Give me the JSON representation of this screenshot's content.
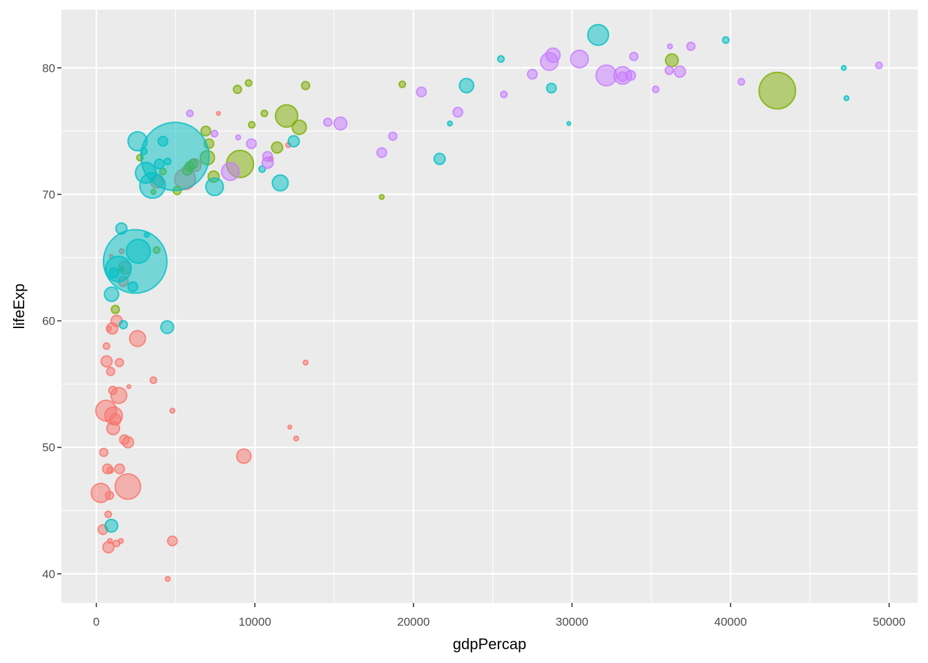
{
  "chart_data": {
    "type": "scatter",
    "title": "",
    "xlabel": "gdpPercap",
    "ylabel": "lifeExp",
    "xlim": [
      -2200,
      51800
    ],
    "ylim": [
      37.7,
      84.6
    ],
    "x_ticks": [
      0,
      10000,
      20000,
      30000,
      40000,
      50000
    ],
    "x_tick_labels": [
      "0",
      "10000",
      "20000",
      "30000",
      "40000",
      "50000"
    ],
    "y_ticks": [
      40,
      50,
      60,
      70,
      80
    ],
    "y_tick_labels": [
      "40",
      "50",
      "60",
      "70",
      "80"
    ],
    "grid": true,
    "legend": "none",
    "point_alpha": 0.5,
    "size_encoding": "population",
    "colors": {
      "Africa": "#F8766D",
      "Americas": "#7CAE00",
      "Asia": "#00BFC4",
      "Europe": "#C77CFF",
      "Oceania": "#C77CFF",
      "panel_background": "#EBEBEB"
    },
    "series": [
      {
        "color_key": "Africa",
        "points": [
          [
            277,
            46.4,
            1.2
          ],
          [
            470,
            49.6,
            0.5
          ],
          [
            415,
            43.5,
            0.6
          ],
          [
            620,
            52.9,
            1.3
          ],
          [
            640,
            58.0,
            0.4
          ],
          [
            650,
            56.8,
            0.7
          ],
          [
            700,
            48.3,
            0.6
          ],
          [
            750,
            44.7,
            0.4
          ],
          [
            760,
            42.1,
            0.7
          ],
          [
            790,
            59.4,
            0.3
          ],
          [
            830,
            46.2,
            0.5
          ],
          [
            860,
            42.6,
            0.3
          ],
          [
            880,
            48.2,
            0.4
          ],
          [
            900,
            56.0,
            0.5
          ],
          [
            930,
            65.1,
            0.2
          ],
          [
            1000,
            59.4,
            0.7
          ],
          [
            1040,
            54.5,
            0.5
          ],
          [
            1060,
            51.5,
            0.8
          ],
          [
            1090,
            52.5,
            1.1
          ],
          [
            1200,
            52.2,
            0.7
          ],
          [
            1270,
            42.4,
            0.4
          ],
          [
            1280,
            60.0,
            0.7
          ],
          [
            1420,
            54.1,
            1.0
          ],
          [
            1460,
            56.7,
            0.5
          ],
          [
            1470,
            48.3,
            0.6
          ],
          [
            1550,
            42.6,
            0.3
          ],
          [
            1600,
            65.5,
            0.3
          ],
          [
            1700,
            63.1,
            0.6
          ],
          [
            1770,
            50.6,
            0.6
          ],
          [
            1800,
            64.2,
            0.8
          ],
          [
            1990,
            46.9,
            1.6
          ],
          [
            2000,
            50.4,
            0.7
          ],
          [
            2050,
            54.8,
            0.2
          ],
          [
            2600,
            58.6,
            1.0
          ],
          [
            3600,
            55.3,
            0.4
          ],
          [
            3820,
            71.0,
            0.8
          ],
          [
            4500,
            39.6,
            0.3
          ],
          [
            4800,
            52.9,
            0.3
          ],
          [
            4800,
            42.6,
            0.6
          ],
          [
            5600,
            71.2,
            1.3
          ],
          [
            6200,
            72.3,
            0.8
          ],
          [
            7700,
            76.4,
            0.2
          ],
          [
            9300,
            49.3,
            0.9
          ],
          [
            11000,
            72.8,
            0.3
          ],
          [
            12100,
            73.9,
            0.3
          ],
          [
            12200,
            51.6,
            0.2
          ],
          [
            12600,
            50.7,
            0.3
          ],
          [
            13200,
            56.7,
            0.3
          ]
        ]
      },
      {
        "color_key": "Americas",
        "points": [
          [
            1200,
            60.9,
            0.5
          ],
          [
            1600,
            64.1,
            0.3
          ],
          [
            2750,
            72.9,
            0.4
          ],
          [
            3600,
            70.2,
            0.3
          ],
          [
            3800,
            65.6,
            0.4
          ],
          [
            4200,
            71.8,
            0.4
          ],
          [
            5100,
            70.3,
            0.5
          ],
          [
            5730,
            71.9,
            0.6
          ],
          [
            5900,
            72.2,
            0.6
          ],
          [
            6100,
            72.4,
            0.6
          ],
          [
            6900,
            75.0,
            0.6
          ],
          [
            7100,
            74.0,
            0.6
          ],
          [
            7000,
            72.9,
            0.9
          ],
          [
            7400,
            71.4,
            0.7
          ],
          [
            8900,
            78.3,
            0.5
          ],
          [
            9065,
            72.4,
            1.7
          ],
          [
            9600,
            78.8,
            0.4
          ],
          [
            9800,
            75.5,
            0.4
          ],
          [
            10600,
            76.4,
            0.4
          ],
          [
            11400,
            73.7,
            0.7
          ],
          [
            12000,
            76.2,
            1.4
          ],
          [
            12800,
            75.3,
            0.9
          ],
          [
            13200,
            78.6,
            0.5
          ],
          [
            18000,
            69.8,
            0.3
          ],
          [
            19300,
            78.7,
            0.4
          ],
          [
            36300,
            80.6,
            0.8
          ],
          [
            42950,
            78.2,
            2.3
          ]
        ]
      },
      {
        "color_key": "Asia",
        "points": [
          [
            950,
            43.8,
            0.8
          ],
          [
            960,
            62.1,
            0.9
          ],
          [
            1100,
            63.8,
            0.6
          ],
          [
            1390,
            64.1,
            1.6
          ],
          [
            1580,
            67.3,
            0.7
          ],
          [
            1700,
            59.7,
            0.5
          ],
          [
            2300,
            62.7,
            0.6
          ],
          [
            2450,
            64.7,
            4.0
          ],
          [
            2600,
            74.2,
            1.2
          ],
          [
            2650,
            65.5,
            1.5
          ],
          [
            3000,
            73.4,
            0.4
          ],
          [
            3120,
            71.7,
            1.3
          ],
          [
            3180,
            66.8,
            0.3
          ],
          [
            3540,
            70.7,
            1.6
          ],
          [
            3970,
            72.4,
            0.6
          ],
          [
            4200,
            74.2,
            0.6
          ],
          [
            4470,
            59.5,
            0.8
          ],
          [
            4500,
            72.6,
            0.4
          ],
          [
            4960,
            73.0,
            4.3
          ],
          [
            7460,
            70.6,
            1.1
          ],
          [
            10460,
            72.0,
            0.4
          ],
          [
            11600,
            70.9,
            1.0
          ],
          [
            12450,
            74.2,
            0.7
          ],
          [
            21650,
            72.8,
            0.7
          ],
          [
            22300,
            75.6,
            0.3
          ],
          [
            23350,
            78.6,
            0.9
          ],
          [
            25520,
            80.7,
            0.4
          ],
          [
            28700,
            78.4,
            0.6
          ],
          [
            29800,
            75.6,
            0.2
          ],
          [
            31650,
            82.6,
            1.3
          ],
          [
            39700,
            82.2,
            0.4
          ],
          [
            47140,
            80.0,
            0.3
          ],
          [
            47310,
            77.6,
            0.3
          ]
        ]
      },
      {
        "color_key": "Europe",
        "points": [
          [
            5900,
            76.4,
            0.4
          ],
          [
            7450,
            74.8,
            0.4
          ],
          [
            8450,
            71.8,
            1.1
          ],
          [
            8950,
            74.5,
            0.3
          ],
          [
            9780,
            74.0,
            0.6
          ],
          [
            10800,
            73.0,
            0.6
          ],
          [
            10810,
            72.5,
            0.7
          ],
          [
            14600,
            75.7,
            0.5
          ],
          [
            15400,
            75.6,
            0.8
          ],
          [
            18000,
            73.3,
            0.6
          ],
          [
            18700,
            74.6,
            0.5
          ],
          [
            20500,
            78.1,
            0.6
          ],
          [
            22800,
            76.5,
            0.6
          ],
          [
            25700,
            77.9,
            0.4
          ],
          [
            27500,
            79.5,
            0.6
          ],
          [
            28570,
            80.5,
            1.1
          ],
          [
            28800,
            81.0,
            0.9
          ],
          [
            30470,
            80.7,
            1.1
          ],
          [
            32170,
            79.4,
            1.3
          ],
          [
            33200,
            79.4,
            1.1
          ],
          [
            33200,
            79.3,
            0.6
          ],
          [
            33700,
            79.4,
            0.6
          ],
          [
            33900,
            80.9,
            0.5
          ],
          [
            35280,
            78.3,
            0.4
          ],
          [
            36130,
            79.8,
            0.5
          ],
          [
            36180,
            81.7,
            0.3
          ],
          [
            36800,
            79.7,
            0.7
          ],
          [
            37500,
            81.7,
            0.5
          ],
          [
            40680,
            78.9,
            0.4
          ],
          [
            49360,
            80.2,
            0.4
          ]
        ]
      }
    ]
  }
}
